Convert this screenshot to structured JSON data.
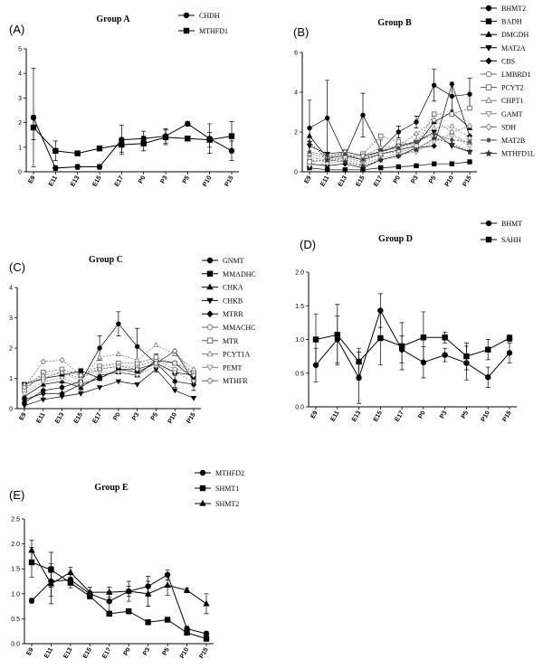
{
  "chart_data": [
    {
      "panel": "(A)",
      "title": "Group A",
      "type": "line",
      "categories": [
        "E9",
        "E11",
        "E13",
        "E15",
        "E17",
        "P0",
        "P3",
        "P5",
        "P10",
        "P15"
      ],
      "ylim": [
        0,
        5
      ],
      "yticks": [
        0,
        1,
        2,
        3,
        4,
        5
      ],
      "series": [
        {
          "name": "CHDH",
          "marker": "circle",
          "values": [
            2.2,
            0.15,
            0.2,
            0.2,
            1.3,
            1.35,
            1.45,
            1.95,
            1.35,
            0.85
          ],
          "err": [
            2.0,
            0.1,
            0.1,
            0.1,
            0.6,
            0.3,
            0.3,
            0.1,
            0.6,
            0.4
          ]
        },
        {
          "name": "MTHFD1",
          "marker": "square",
          "values": [
            1.8,
            0.85,
            0.75,
            0.95,
            1.1,
            1.15,
            1.4,
            1.35,
            1.3,
            1.45
          ],
          "err": [
            0.5,
            0.4,
            0.1,
            0.1,
            0.3,
            0.3,
            0.3,
            0.1,
            0.3,
            0.6
          ]
        }
      ]
    },
    {
      "panel": "(B)",
      "title": "Group B",
      "type": "line",
      "categories": [
        "E9",
        "E11",
        "E13",
        "E15",
        "E17",
        "P0",
        "P3",
        "P5",
        "P10",
        "P15"
      ],
      "ylim": [
        0,
        6
      ],
      "yticks": [
        0,
        2,
        4,
        6
      ],
      "series": [
        {
          "name": "BHMT2",
          "marker": "circle",
          "values": [
            2.2,
            2.7,
            0.8,
            2.85,
            1.1,
            2.0,
            2.5,
            4.35,
            3.8,
            3.9
          ],
          "err": [
            1.4,
            1.9,
            0.3,
            1.1,
            0.5,
            0.3,
            0.3,
            0.8,
            0.7,
            0.8
          ]
        },
        {
          "name": "BADH",
          "marker": "square",
          "values": [
            0.2,
            0.1,
            0.1,
            0.1,
            0.2,
            0.25,
            0.3,
            0.4,
            0.4,
            0.5
          ],
          "err": [
            0,
            0,
            0,
            0,
            0,
            0,
            0,
            0,
            0,
            0
          ]
        },
        {
          "name": "DMGDH",
          "marker": "triangle",
          "values": [
            1.8,
            0.7,
            0.8,
            0.6,
            0.9,
            1.1,
            1.3,
            2.5,
            3.0,
            2.2
          ],
          "err": [
            0,
            0,
            0,
            0,
            0,
            0,
            0,
            0,
            0,
            0
          ]
        },
        {
          "name": "MAT2A",
          "marker": "triangle-down",
          "values": [
            1.3,
            0.9,
            1.0,
            0.8,
            1.0,
            1.3,
            1.5,
            2.0,
            1.3,
            1.0
          ],
          "err": [
            0,
            0,
            0,
            0,
            0,
            0,
            0,
            0,
            0,
            0
          ]
        },
        {
          "name": "CBS",
          "marker": "diamond",
          "values": [
            0.4,
            0.3,
            0.4,
            0.2,
            0.6,
            0.8,
            1.2,
            1.3,
            4.4,
            1.8
          ],
          "err": [
            0,
            0,
            0,
            0,
            0,
            0,
            0,
            0,
            0,
            0
          ]
        },
        {
          "name": "LMBRD1",
          "marker": "circle-open",
          "values": [
            0.6,
            0.5,
            0.7,
            0.5,
            0.9,
            1.0,
            1.2,
            1.6,
            1.9,
            1.4
          ],
          "err": [
            0,
            0,
            0,
            0,
            0,
            0,
            0,
            0,
            0,
            0
          ]
        },
        {
          "name": "PCYT2",
          "marker": "square-open",
          "values": [
            0.5,
            0.6,
            0.7,
            0.9,
            1.8,
            1.5,
            1.3,
            2.9,
            2.9,
            3.2
          ],
          "err": [
            0,
            0,
            0,
            0,
            0,
            0,
            0,
            0,
            0,
            0
          ]
        },
        {
          "name": "CHPT1",
          "marker": "triangle-open",
          "values": [
            0.7,
            0.6,
            0.9,
            0.7,
            1.0,
            1.2,
            1.6,
            2.2,
            2.3,
            1.7
          ],
          "err": [
            0,
            0,
            0,
            0,
            0,
            0,
            0,
            0,
            0,
            0
          ]
        },
        {
          "name": "GAMT",
          "marker": "triangle-down-open",
          "values": [
            0.3,
            0.4,
            0.6,
            0.4,
            0.7,
            0.9,
            1.0,
            1.5,
            1.8,
            1.3
          ],
          "err": [
            0,
            0,
            0,
            0,
            0,
            0,
            0,
            0,
            0,
            0
          ]
        },
        {
          "name": "SDH",
          "marker": "diamond-open",
          "values": [
            0.9,
            0.7,
            1.0,
            0.8,
            1.2,
            1.3,
            1.9,
            2.6,
            2.0,
            2.3
          ],
          "err": [
            0,
            0,
            0,
            0,
            0,
            0,
            0,
            0,
            0,
            0
          ]
        },
        {
          "name": "MAT2B",
          "marker": "asterisk",
          "values": [
            1.0,
            0.8,
            0.9,
            0.6,
            1.1,
            1.2,
            1.5,
            1.9,
            1.6,
            1.5
          ],
          "err": [
            0,
            0,
            0,
            0,
            0,
            0,
            0,
            0,
            0,
            0
          ]
        },
        {
          "name": "MTHFD1L",
          "marker": "star",
          "values": [
            1.5,
            0.6,
            0.5,
            0.3,
            0.6,
            0.8,
            1.1,
            1.7,
            1.4,
            1.0
          ],
          "err": [
            0,
            0,
            0,
            0,
            0,
            0,
            0,
            0,
            0,
            0
          ]
        }
      ]
    },
    {
      "panel": "(C)",
      "title": "Group C",
      "type": "line",
      "categories": [
        "E9",
        "E11",
        "E13",
        "E15",
        "E17",
        "P0",
        "P3",
        "P5",
        "P10",
        "P15"
      ],
      "ylim": [
        0,
        4
      ],
      "yticks": [
        0,
        1,
        2,
        3,
        4
      ],
      "series": [
        {
          "name": "GNMT",
          "marker": "circle",
          "values": [
            0.2,
            0.6,
            0.7,
            0.9,
            2.0,
            2.8,
            2.05,
            1.5,
            0.9,
            0.8
          ],
          "err": [
            0.2,
            0.3,
            0.3,
            0.3,
            0.4,
            0.4,
            0.6,
            0.3,
            0.2,
            0.2
          ]
        },
        {
          "name": "MMADHC",
          "marker": "square",
          "values": [
            0.8,
            1.0,
            1.1,
            1.25,
            1.0,
            1.3,
            1.3,
            1.5,
            1.2,
            1.1
          ],
          "err": [
            0,
            0,
            0,
            0,
            0,
            0,
            0,
            0,
            0,
            0
          ]
        },
        {
          "name": "CHKA",
          "marker": "triangle",
          "values": [
            0.4,
            0.8,
            0.9,
            0.7,
            1.1,
            1.2,
            1.1,
            1.6,
            1.5,
            1.0
          ],
          "err": [
            0,
            0,
            0,
            0,
            0,
            0,
            0,
            0,
            0,
            0
          ]
        },
        {
          "name": "CHKB",
          "marker": "triangle-down",
          "values": [
            0.1,
            0.3,
            0.4,
            0.5,
            0.7,
            0.9,
            0.8,
            1.3,
            0.6,
            0.35
          ],
          "err": [
            0,
            0,
            0,
            0,
            0,
            0,
            0,
            0,
            0,
            0
          ]
        },
        {
          "name": "MTRR",
          "marker": "diamond",
          "values": [
            0.3,
            0.5,
            0.5,
            0.8,
            1.0,
            1.3,
            1.2,
            1.5,
            1.9,
            0.9
          ],
          "err": [
            0,
            0,
            0,
            0,
            0,
            0,
            0,
            0,
            0,
            0
          ]
        },
        {
          "name": "MMACHC",
          "marker": "circle-open",
          "values": [
            0.7,
            1.0,
            1.2,
            1.0,
            1.3,
            1.4,
            1.4,
            1.6,
            1.3,
            1.2
          ],
          "err": [
            0,
            0,
            0,
            0,
            0,
            0,
            0,
            0,
            0,
            0
          ]
        },
        {
          "name": "MTR",
          "marker": "square-open",
          "values": [
            0.6,
            1.2,
            1.3,
            1.1,
            1.4,
            1.5,
            1.5,
            1.7,
            1.5,
            1.2
          ],
          "err": [
            0,
            0,
            0,
            0,
            0,
            0,
            0,
            0,
            0,
            0
          ]
        },
        {
          "name": "PCYT1A",
          "marker": "triangle-open",
          "values": [
            0.8,
            1.1,
            1.2,
            0.9,
            1.7,
            1.8,
            1.6,
            2.1,
            1.8,
            1.3
          ],
          "err": [
            0,
            0,
            0,
            0,
            0,
            0,
            0,
            0,
            0,
            0
          ]
        },
        {
          "name": "PEMT",
          "marker": "triangle-down-open",
          "values": [
            0.5,
            0.9,
            1.0,
            0.8,
            1.2,
            1.2,
            1.1,
            1.4,
            1.2,
            0.9
          ],
          "err": [
            0,
            0,
            0,
            0,
            0,
            0,
            0,
            0,
            0,
            0
          ]
        },
        {
          "name": "MTHFR",
          "marker": "diamond-open",
          "values": [
            0.7,
            1.55,
            1.6,
            1.1,
            1.3,
            1.4,
            1.3,
            1.5,
            1.9,
            1.1
          ],
          "err": [
            0,
            0,
            0,
            0,
            0,
            0,
            0,
            0,
            0,
            0
          ]
        }
      ]
    },
    {
      "panel": "(D)",
      "title": "Group D",
      "type": "line",
      "categories": [
        "E9",
        "E11",
        "E13",
        "E15",
        "E17",
        "P0",
        "P3",
        "P5",
        "P10",
        "P15"
      ],
      "ylim": [
        0,
        2.0
      ],
      "yticks": [
        0.0,
        0.5,
        1.0,
        1.5,
        2.0
      ],
      "series": [
        {
          "name": "BHMT",
          "marker": "circle",
          "values": [
            0.62,
            1.0,
            0.43,
            1.43,
            0.85,
            0.66,
            0.77,
            0.65,
            0.44,
            0.8
          ],
          "err": [
            0.25,
            0.35,
            0.38,
            0.25,
            0.2,
            0.23,
            0.1,
            0.25,
            0.15,
            0.15
          ]
        },
        {
          "name": "SAHH",
          "marker": "square",
          "values": [
            1.0,
            1.07,
            0.67,
            1.02,
            0.9,
            1.03,
            1.03,
            0.75,
            0.85,
            1.02
          ],
          "err": [
            0.38,
            0.45,
            0.2,
            0.4,
            0.35,
            0.38,
            0.08,
            0.2,
            0.15,
            0.05
          ]
        }
      ]
    },
    {
      "panel": "(E)",
      "title": "Group E",
      "type": "line",
      "categories": [
        "E9",
        "E11",
        "E13",
        "E15",
        "E17",
        "P0",
        "P3",
        "P5",
        "P10",
        "P15"
      ],
      "ylim": [
        0,
        2.5
      ],
      "yticks": [
        0.0,
        0.5,
        1.0,
        1.5,
        2.0,
        2.5
      ],
      "series": [
        {
          "name": "MTHFD2",
          "marker": "circle",
          "values": [
            0.86,
            1.25,
            1.28,
            1.0,
            0.85,
            1.05,
            1.15,
            1.38,
            0.3,
            0.2
          ],
          "err": [
            0.05,
            0.3,
            0.1,
            0.05,
            0.2,
            0.2,
            0.2,
            0.1,
            0.05,
            0.05
          ]
        },
        {
          "name": "SHMT1",
          "marker": "square",
          "values": [
            1.63,
            1.48,
            1.22,
            0.95,
            0.6,
            0.65,
            0.43,
            0.48,
            0.22,
            0.1
          ],
          "err": [
            0.3,
            0.35,
            0.1,
            0.05,
            0.05,
            0.05,
            0.05,
            0.03,
            0.05,
            0.05
          ]
        },
        {
          "name": "SHMT2",
          "marker": "triangle",
          "values": [
            1.87,
            1.2,
            1.43,
            1.03,
            1.03,
            1.05,
            1.0,
            1.17,
            1.07,
            0.8
          ],
          "err": [
            0.2,
            0.4,
            0.1,
            0.1,
            0.1,
            0.1,
            0.25,
            0.2,
            0.05,
            0.2
          ]
        }
      ]
    }
  ]
}
